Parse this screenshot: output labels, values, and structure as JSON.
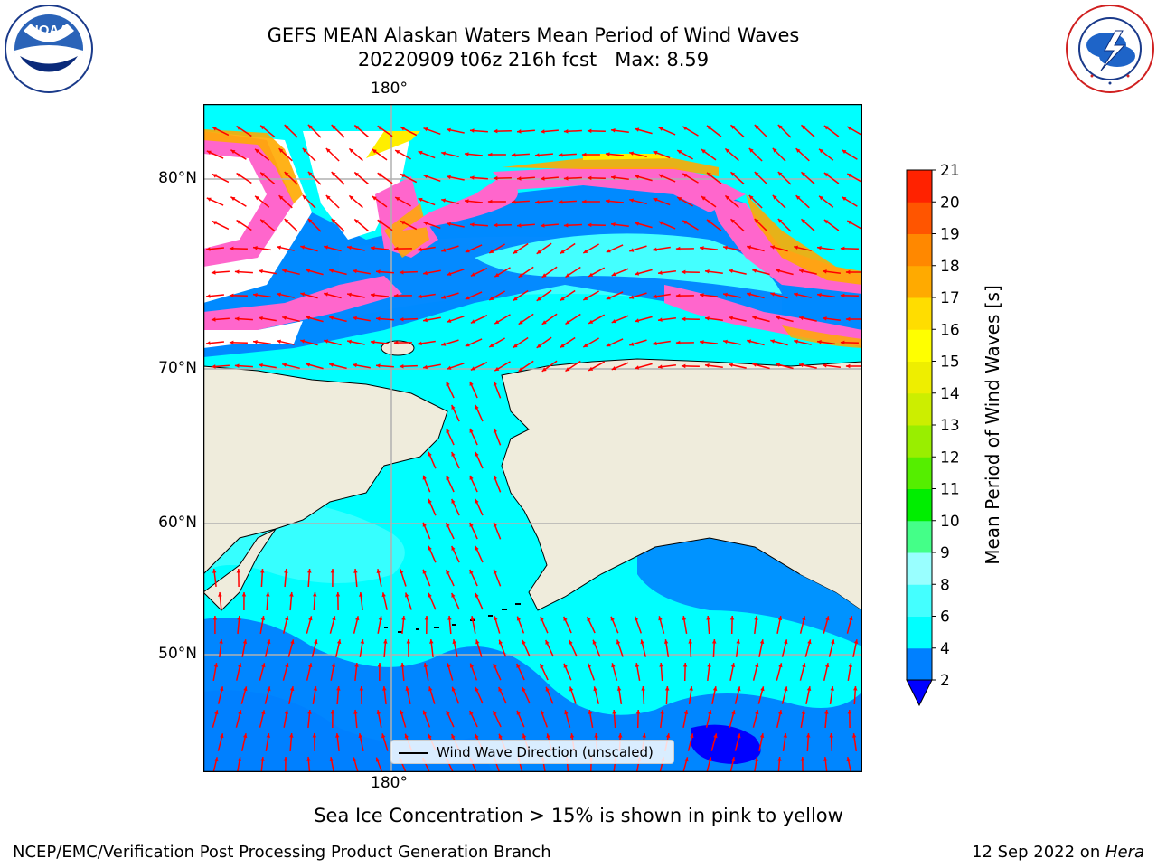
{
  "title": {
    "line1": "GEFS MEAN Alaskan Waters Mean Period of Wind Waves",
    "line2": "20220909 t06z 216h fcst   Max: 8.59"
  },
  "map": {
    "lon_label_top": "180°",
    "lon_label_bottom": "180°",
    "lat_labels": [
      "80°N",
      "70°N",
      "60°N",
      "50°N"
    ],
    "legend_text": "Wind Wave Direction (unscaled)",
    "colors": {
      "land": "#efecdc",
      "ocean_light": "#00ffff",
      "ocean_mid": "#44ffff",
      "ocean_dark": "#0080ff",
      "arrow": "#ff0000",
      "ice_pink": "#ff66cc",
      "ice_orange": "#ffaa00",
      "ice_yellow": "#ffee00"
    }
  },
  "colorbar": {
    "label": "Mean Period of Wind Waves [s]",
    "ticks": [
      "2",
      "4",
      "6",
      "8",
      "9",
      "10",
      "11",
      "12",
      "13",
      "14",
      "15",
      "16",
      "17",
      "18",
      "19",
      "20",
      "21"
    ],
    "colors": [
      "#0080ff",
      "#00ffff",
      "#44ffff",
      "#99ffff",
      "#44ff88",
      "#00ee00",
      "#55ee00",
      "#99ee00",
      "#ccee00",
      "#eeee00",
      "#ffff00",
      "#ffdd00",
      "#ffaa00",
      "#ff8800",
      "#ff5500",
      "#ff2200",
      "#ff0000"
    ],
    "extend_color": "#0000ff"
  },
  "subtitle": "Sea Ice Concentration > 15% is shown in pink to yellow",
  "footer": {
    "left": "NCEP/EMC/Verification Post Processing Product Generation Branch",
    "right_date": "12 Sep 2022 on ",
    "right_host": "Hera"
  },
  "logos": {
    "noaa": "noaa-logo-icon",
    "nws": "nws-logo-icon",
    "noaa_text": "NOAA"
  }
}
